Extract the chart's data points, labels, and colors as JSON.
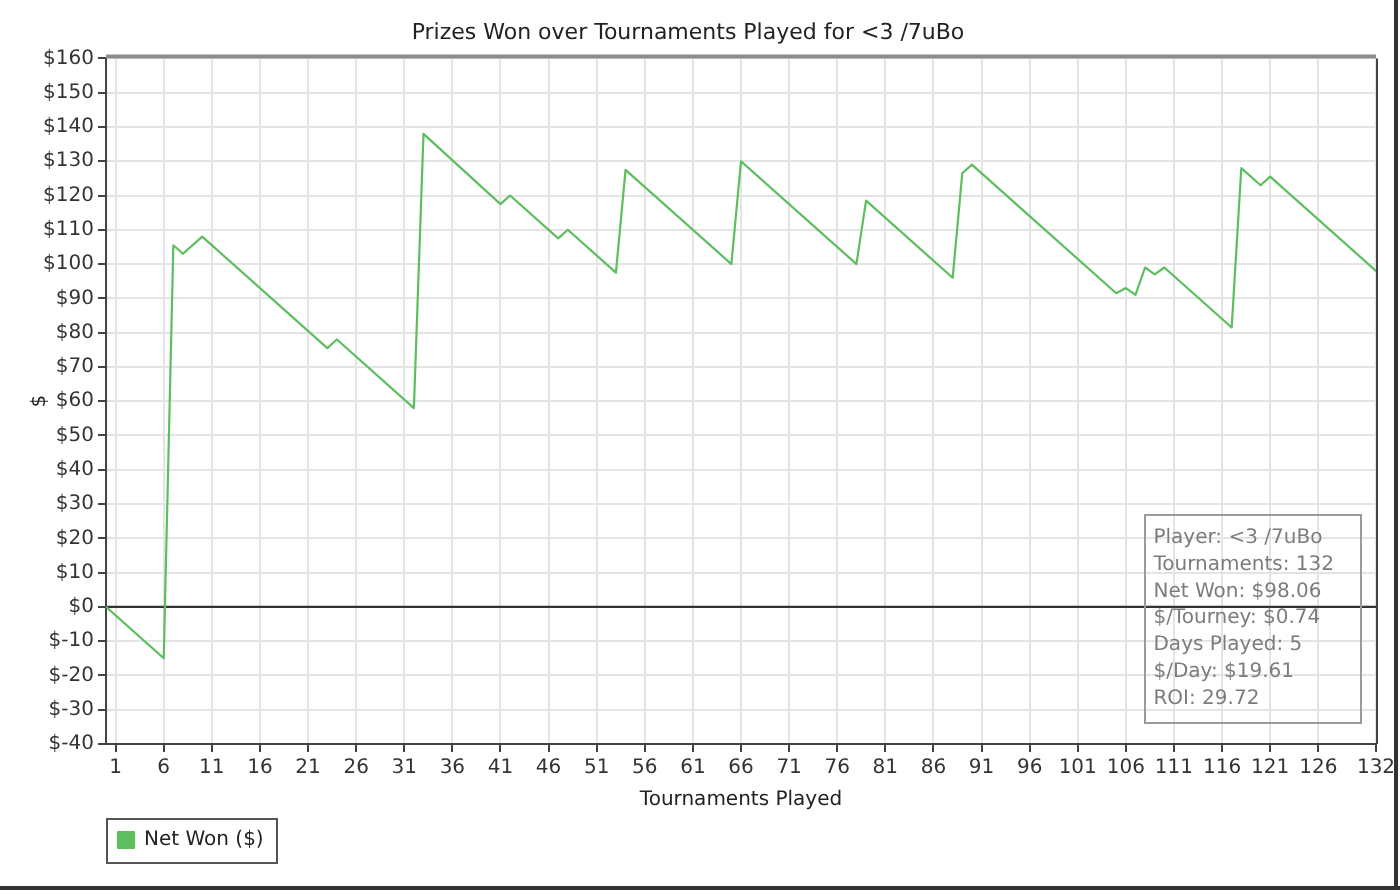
{
  "chart_data": {
    "type": "line",
    "title": "Prizes Won over Tournaments Played for <3 /7uBo",
    "xlabel": "Tournaments Played",
    "ylabel": "$",
    "x": [
      0,
      6,
      7,
      8,
      10,
      23,
      24,
      32,
      33,
      41,
      42,
      47,
      48,
      53,
      54,
      65,
      66,
      78,
      79,
      88,
      89,
      90,
      105,
      106,
      107,
      108,
      109,
      110,
      117,
      118,
      120,
      121,
      132
    ],
    "series": [
      {
        "name": "Net Won ($)",
        "color": "#5dbe5d",
        "values": [
          0,
          -15,
          105.5,
          103,
          108,
          75.5,
          78,
          58,
          138,
          117.5,
          120,
          107.5,
          110,
          97.5,
          127.5,
          100,
          130,
          100,
          118.5,
          96,
          126.5,
          129,
          91.5,
          93,
          91,
          99,
          97,
          99,
          81.5,
          128,
          123,
          125.5,
          98
        ]
      }
    ],
    "xlim": [
      0,
      132
    ],
    "xticks": [
      1,
      6,
      11,
      16,
      21,
      26,
      31,
      36,
      41,
      46,
      51,
      56,
      61,
      66,
      71,
      76,
      81,
      86,
      91,
      96,
      101,
      106,
      111,
      116,
      121,
      126,
      132
    ],
    "ylim": [
      -40,
      160
    ],
    "yticks": [
      {
        "value": -40,
        "label": "$-40"
      },
      {
        "value": -30,
        "label": "$-30"
      },
      {
        "value": -20,
        "label": "$-20"
      },
      {
        "value": -10,
        "label": "$-10"
      },
      {
        "value": 0,
        "label": "$0"
      },
      {
        "value": 10,
        "label": "$10"
      },
      {
        "value": 20,
        "label": "$20"
      },
      {
        "value": 30,
        "label": "$30"
      },
      {
        "value": 40,
        "label": "$40"
      },
      {
        "value": 50,
        "label": "$50"
      },
      {
        "value": 60,
        "label": "$60"
      },
      {
        "value": 70,
        "label": "$70"
      },
      {
        "value": 80,
        "label": "$80"
      },
      {
        "value": 90,
        "label": "$90"
      },
      {
        "value": 100,
        "label": "$100"
      },
      {
        "value": 110,
        "label": "$110"
      },
      {
        "value": 120,
        "label": "$120"
      },
      {
        "value": 130,
        "label": "$130"
      },
      {
        "value": 140,
        "label": "$140"
      },
      {
        "value": 150,
        "label": "$150"
      },
      {
        "value": 160,
        "label": "$160"
      }
    ],
    "ref_lines": [
      {
        "axis": "y",
        "value": 0,
        "color": "#333333"
      }
    ],
    "annotations": [
      "Player: <3 /7uBo",
      "Tournaments: 132",
      "Net Won: $98.06",
      "$/Tourney: $0.74",
      "Days Played: 5",
      "$/Day: $19.61",
      "ROI: 29.72"
    ],
    "grid": true,
    "legend": "bottom left",
    "line_style": "solid"
  }
}
